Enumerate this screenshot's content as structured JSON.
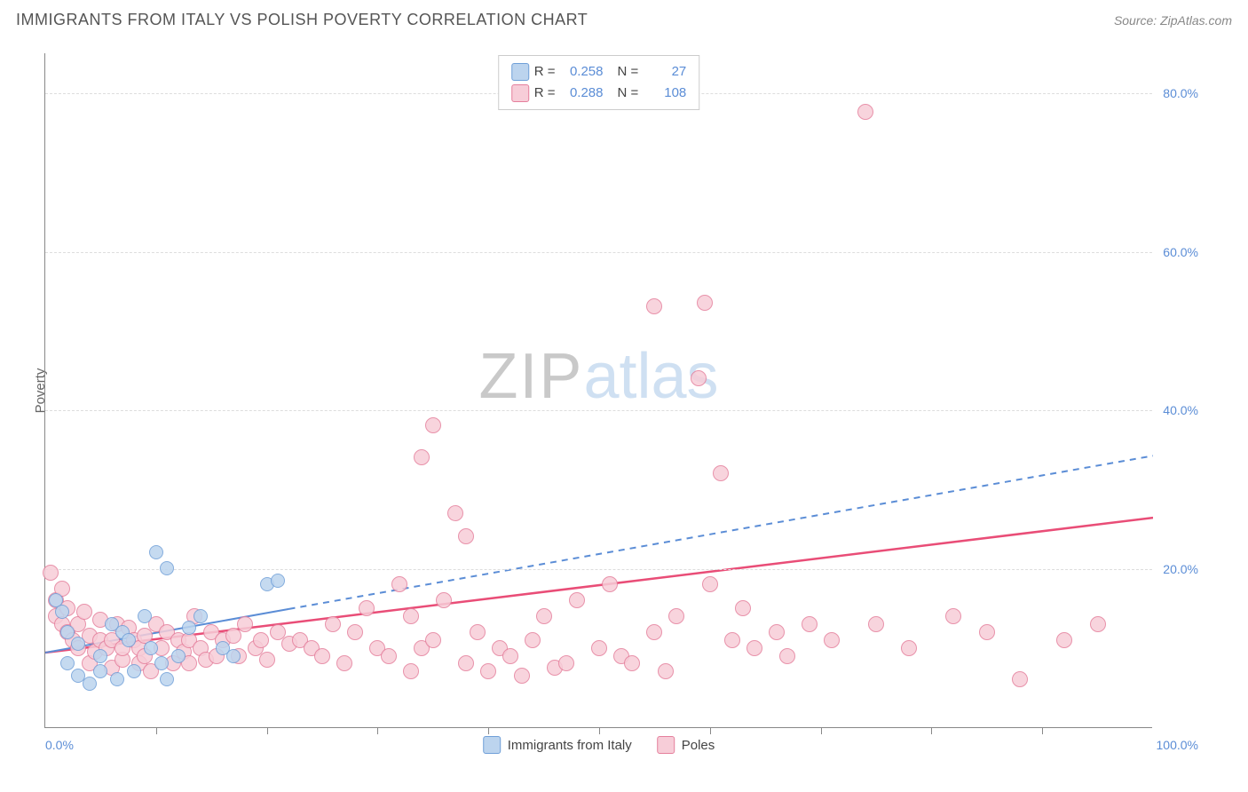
{
  "header": {
    "title": "IMMIGRANTS FROM ITALY VS POLISH POVERTY CORRELATION CHART",
    "source": "Source: ZipAtlas.com"
  },
  "chart": {
    "type": "scatter",
    "y_axis_title": "Poverty",
    "xlim": [
      0,
      100
    ],
    "ylim": [
      0,
      85
    ],
    "grid_y": [
      20,
      40,
      60,
      80
    ],
    "grid_color": "#dddddd",
    "y_tick_labels": [
      "20.0%",
      "40.0%",
      "60.0%",
      "80.0%"
    ],
    "x_tick_min": "0.0%",
    "x_tick_max": "100.0%",
    "x_ticks": [
      10,
      20,
      30,
      40,
      50,
      60,
      70,
      80,
      90
    ],
    "axis_label_color": "#5b8dd6",
    "watermark": {
      "part1": "ZIP",
      "part2": "atlas"
    },
    "series": [
      {
        "name": "Immigrants from Italy",
        "r": 0.258,
        "n": 27,
        "marker_fill": "#bcd4ee",
        "marker_stroke": "#6f9fd8",
        "marker_size": 16,
        "trend": {
          "style": "solid-then-dashed",
          "color": "#5b8dd6",
          "width": 2,
          "x1": 0,
          "y1": 9.5,
          "x_solid_end": 22,
          "y_solid_end": 15.0,
          "x2": 100,
          "y2": 34.3
        },
        "points": [
          [
            1,
            16
          ],
          [
            1.5,
            14.5
          ],
          [
            2,
            12
          ],
          [
            2,
            8
          ],
          [
            3,
            10.5
          ],
          [
            3,
            6.5
          ],
          [
            4,
            5.5
          ],
          [
            5,
            7
          ],
          [
            5,
            9
          ],
          [
            6,
            13
          ],
          [
            6.5,
            6
          ],
          [
            7,
            12
          ],
          [
            7.5,
            11
          ],
          [
            8,
            7
          ],
          [
            9,
            14
          ],
          [
            9.5,
            10
          ],
          [
            10,
            22
          ],
          [
            10.5,
            8
          ],
          [
            11,
            6
          ],
          [
            11,
            20
          ],
          [
            12,
            9
          ],
          [
            13,
            12.5
          ],
          [
            14,
            14
          ],
          [
            16,
            10
          ],
          [
            17,
            9
          ],
          [
            20,
            18
          ],
          [
            21,
            18.5
          ]
        ]
      },
      {
        "name": "Poles",
        "r": 0.288,
        "n": 108,
        "marker_fill": "#f7cdd8",
        "marker_stroke": "#e57f9c",
        "marker_size": 18,
        "trend": {
          "style": "solid",
          "color": "#e94d77",
          "width": 2.5,
          "x1": 0,
          "y1": 9.5,
          "x2": 100,
          "y2": 26.5
        },
        "points": [
          [
            0.5,
            19.5
          ],
          [
            1,
            16
          ],
          [
            1,
            14
          ],
          [
            1.5,
            17.5
          ],
          [
            1.5,
            13
          ],
          [
            2,
            15
          ],
          [
            2,
            12
          ],
          [
            2.5,
            11
          ],
          [
            3,
            13
          ],
          [
            3,
            10
          ],
          [
            3.5,
            14.5
          ],
          [
            4,
            8
          ],
          [
            4,
            11.5
          ],
          [
            4.5,
            9.5
          ],
          [
            5,
            11
          ],
          [
            5,
            13.5
          ],
          [
            5.5,
            10
          ],
          [
            6,
            7.5
          ],
          [
            6,
            11
          ],
          [
            6.5,
            13
          ],
          [
            7,
            8.5
          ],
          [
            7,
            10
          ],
          [
            7.5,
            12.5
          ],
          [
            8,
            11
          ],
          [
            8.5,
            8
          ],
          [
            8.5,
            10
          ],
          [
            9,
            9
          ],
          [
            9,
            11.5
          ],
          [
            9.5,
            7
          ],
          [
            10,
            13
          ],
          [
            10.5,
            10
          ],
          [
            11,
            12
          ],
          [
            11.5,
            8
          ],
          [
            12,
            11
          ],
          [
            12.5,
            9.5
          ],
          [
            13,
            8
          ],
          [
            13,
            11
          ],
          [
            13.5,
            14
          ],
          [
            14,
            10
          ],
          [
            14.5,
            8.5
          ],
          [
            15,
            12
          ],
          [
            15.5,
            9
          ],
          [
            16,
            11
          ],
          [
            17,
            11.5
          ],
          [
            17.5,
            9
          ],
          [
            18,
            13
          ],
          [
            19,
            10
          ],
          [
            19.5,
            11
          ],
          [
            20,
            8.5
          ],
          [
            21,
            12
          ],
          [
            22,
            10.5
          ],
          [
            23,
            11
          ],
          [
            24,
            10
          ],
          [
            25,
            9
          ],
          [
            26,
            13
          ],
          [
            27,
            8
          ],
          [
            28,
            12
          ],
          [
            29,
            15
          ],
          [
            30,
            10
          ],
          [
            31,
            9
          ],
          [
            32,
            18
          ],
          [
            33,
            7
          ],
          [
            33,
            14
          ],
          [
            34,
            10
          ],
          [
            34,
            34
          ],
          [
            35,
            11
          ],
          [
            35,
            38
          ],
          [
            36,
            16
          ],
          [
            37,
            27
          ],
          [
            38,
            8
          ],
          [
            38,
            24
          ],
          [
            39,
            12
          ],
          [
            40,
            7
          ],
          [
            41,
            10
          ],
          [
            42,
            9
          ],
          [
            43,
            6.5
          ],
          [
            44,
            11
          ],
          [
            45,
            14
          ],
          [
            46,
            7.5
          ],
          [
            47,
            8
          ],
          [
            48,
            16
          ],
          [
            50,
            10
          ],
          [
            51,
            18
          ],
          [
            52,
            9
          ],
          [
            53,
            8
          ],
          [
            55,
            53
          ],
          [
            55,
            12
          ],
          [
            56,
            7
          ],
          [
            57,
            14
          ],
          [
            59,
            44
          ],
          [
            59.5,
            53.5
          ],
          [
            60,
            18
          ],
          [
            61,
            32
          ],
          [
            62,
            11
          ],
          [
            63,
            15
          ],
          [
            64,
            10
          ],
          [
            66,
            12
          ],
          [
            67,
            9
          ],
          [
            69,
            13
          ],
          [
            71,
            11
          ],
          [
            74,
            77.5
          ],
          [
            75,
            13
          ],
          [
            78,
            10
          ],
          [
            82,
            14
          ],
          [
            85,
            12
          ],
          [
            88,
            6
          ],
          [
            92,
            11
          ],
          [
            95,
            13
          ]
        ]
      }
    ],
    "legend_bottom": [
      {
        "label": "Immigrants from Italy",
        "fill": "#bcd4ee",
        "stroke": "#6f9fd8"
      },
      {
        "label": "Poles",
        "fill": "#f7cdd8",
        "stroke": "#e57f9c"
      }
    ]
  }
}
